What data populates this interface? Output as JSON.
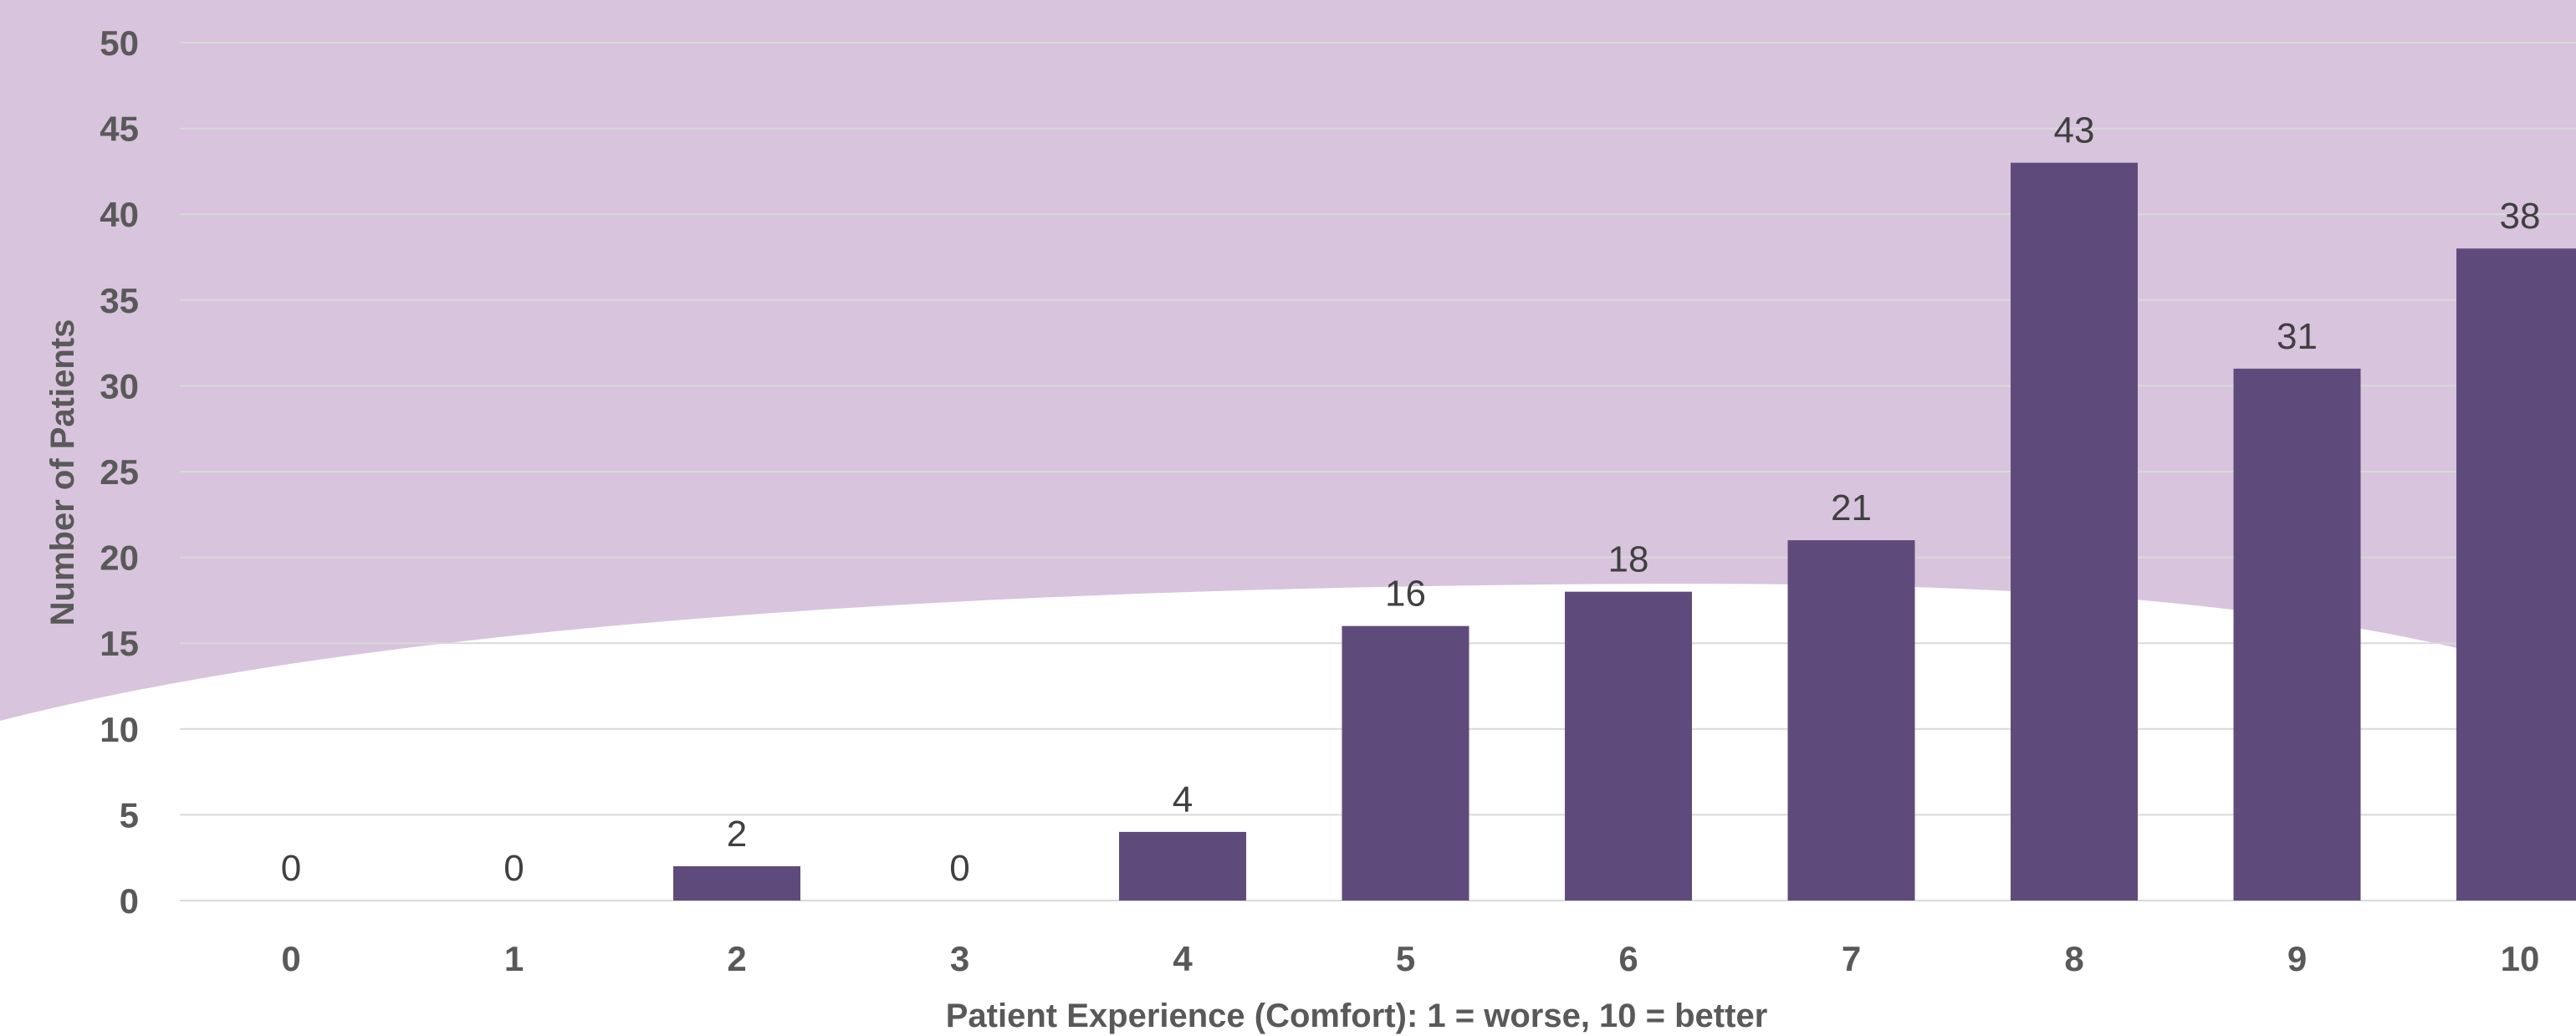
{
  "chart_data": {
    "type": "bar",
    "title": "",
    "xlabel": "Patient Experience (Comfort): 1 = worse, 10 = better",
    "ylabel": "Number of Patients",
    "categories": [
      "0",
      "1",
      "2",
      "3",
      "4",
      "5",
      "6",
      "7",
      "8",
      "9",
      "10"
    ],
    "values": [
      0,
      0,
      2,
      0,
      4,
      16,
      18,
      21,
      43,
      31,
      38
    ],
    "ylim": [
      0,
      50
    ],
    "yticks": [
      "0",
      "5",
      "10",
      "15",
      "20",
      "25",
      "30",
      "35",
      "40",
      "45",
      "50"
    ],
    "grid": true,
    "legend": "none",
    "bar_color": "#5f4b7b",
    "background_color": "#d8c4dc"
  }
}
